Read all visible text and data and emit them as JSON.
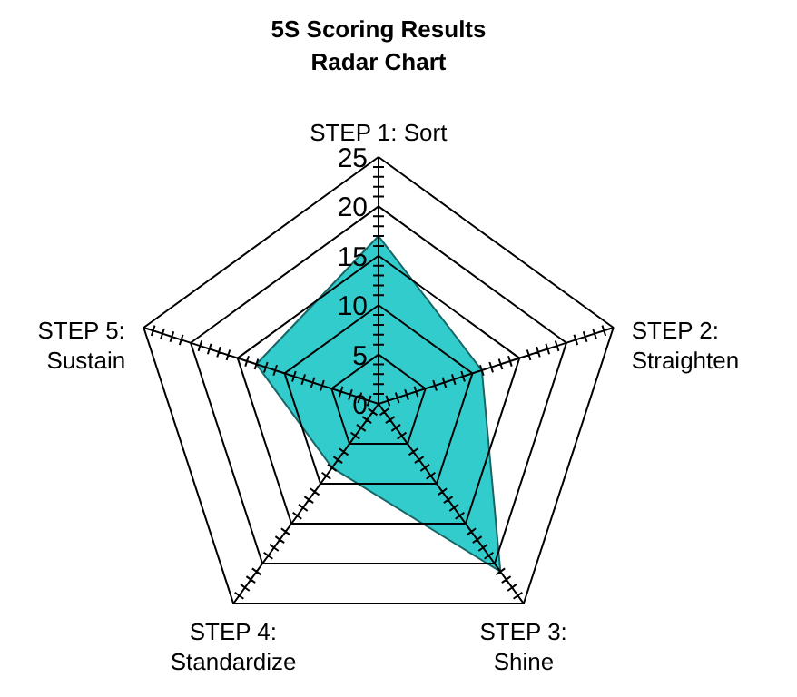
{
  "chart_data": {
    "type": "radar",
    "title": "5S Scoring Results",
    "subtitle": "Radar Chart",
    "categories": [
      "STEP 1: Sort",
      "STEP 2:\nStraighten",
      "STEP 3:\nShine",
      "STEP 4:\nStandardize",
      "STEP 5:\nSustain"
    ],
    "series": [
      {
        "color": "#33cccc",
        "values": [
          17,
          11,
          21,
          8,
          13
        ]
      }
    ],
    "ylim": [
      0,
      25
    ],
    "yticks": [
      0,
      5,
      10,
      15,
      20,
      25
    ],
    "grid": true
  }
}
